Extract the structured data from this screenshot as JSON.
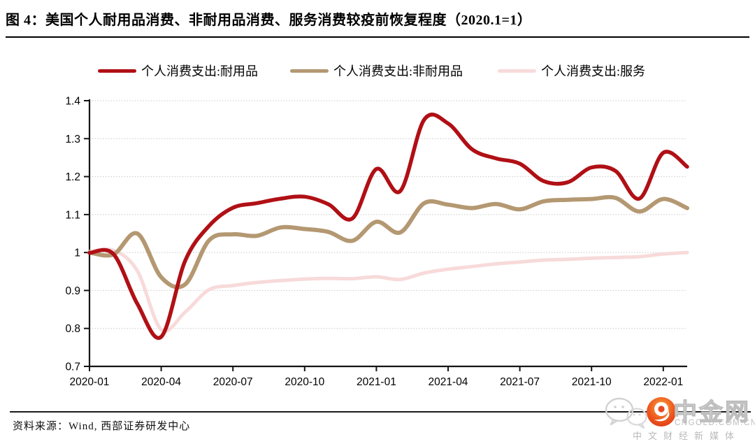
{
  "title": "图 4：美国个人耐用品消费、非耐用品消费、服务消费较疫前恢复程度（2020.1=1）",
  "source": "资料来源：Wind, 西部证券研发中心",
  "watermark": {
    "name": "中金网",
    "url": "CNGOLD.COM.CN",
    "subtitle": "中文财经新媒体",
    "logo_color": "#e8491f",
    "icon": "wechat-icon"
  },
  "chart_data": {
    "type": "line",
    "title": "美国个人耐用品消费、非耐用品消费、服务消费较疫前恢复程度（2020.1=1）",
    "xlabel": "",
    "ylabel": "",
    "ylim": [
      0.7,
      1.4
    ],
    "grid": "horizontal-dotted",
    "legend_position": "top",
    "y_tick_labels": [
      "1.4",
      "1.3",
      "1.2",
      "1.1",
      "1",
      "0.9",
      "0.8",
      "0.7"
    ],
    "x_tick_labels": [
      "2020-01",
      "2020-04",
      "2020-07",
      "2020-10",
      "2021-01",
      "2021-04",
      "2021-07",
      "2021-10",
      "2022-01"
    ],
    "months": [
      "2020-01",
      "2020-02",
      "2020-03",
      "2020-04",
      "2020-05",
      "2020-06",
      "2020-07",
      "2020-08",
      "2020-09",
      "2020-10",
      "2020-11",
      "2020-12",
      "2021-01",
      "2021-02",
      "2021-03",
      "2021-04",
      "2021-05",
      "2021-06",
      "2021-07",
      "2021-08",
      "2021-09",
      "2021-10",
      "2021-11",
      "2021-12",
      "2022-01",
      "2022-02"
    ],
    "series": [
      {
        "name": "个人消费支出:耐用品",
        "color": "#b01015",
        "values": [
          0.999,
          0.996,
          0.865,
          0.778,
          0.978,
          1.07,
          1.118,
          1.13,
          1.142,
          1.147,
          1.127,
          1.09,
          1.22,
          1.162,
          1.35,
          1.34,
          1.272,
          1.248,
          1.234,
          1.188,
          1.185,
          1.224,
          1.215,
          1.142,
          1.263,
          1.226
        ]
      },
      {
        "name": "个人消费支出:非耐用品",
        "color": "#b49872",
        "values": [
          1.0,
          0.995,
          1.05,
          0.935,
          0.916,
          1.032,
          1.048,
          1.044,
          1.066,
          1.062,
          1.054,
          1.031,
          1.081,
          1.053,
          1.13,
          1.126,
          1.117,
          1.128,
          1.114,
          1.135,
          1.139,
          1.141,
          1.144,
          1.108,
          1.141,
          1.117
        ]
      },
      {
        "name": "个人消费支出:服务",
        "color": "#f8dada",
        "values": [
          1.002,
          1.006,
          0.952,
          0.797,
          0.843,
          0.902,
          0.913,
          0.921,
          0.926,
          0.93,
          0.932,
          0.931,
          0.936,
          0.929,
          0.946,
          0.956,
          0.963,
          0.97,
          0.975,
          0.98,
          0.982,
          0.985,
          0.987,
          0.989,
          0.996,
          1.0
        ]
      }
    ]
  }
}
